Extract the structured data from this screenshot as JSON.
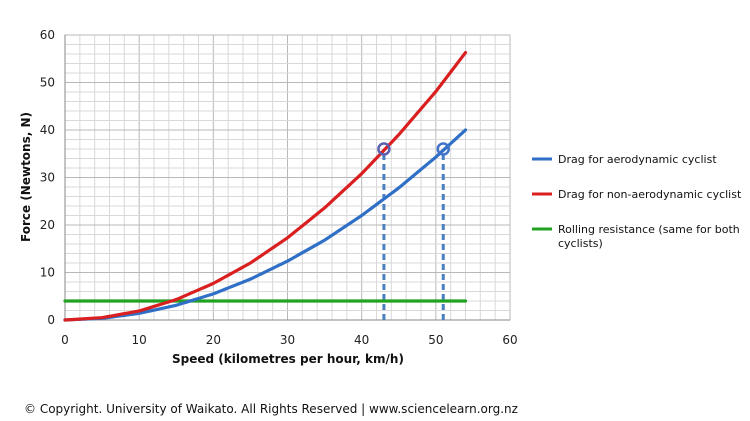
{
  "chart_data": {
    "type": "line",
    "xlabel": "Speed (kilometres per hour, km/h)",
    "ylabel": "Force (Newtons, N)",
    "xlim": [
      0,
      60
    ],
    "ylim": [
      0,
      60
    ],
    "x_ticks": [
      "0",
      "10",
      "20",
      "30",
      "40",
      "50",
      "60"
    ],
    "y_ticks": [
      "0",
      "10",
      "20",
      "30",
      "40",
      "50",
      "60"
    ],
    "grid": true,
    "legend_position": "right",
    "series": [
      {
        "name": "Drag for aerodynamic cyclist",
        "color": "#2f6fc6",
        "x": [
          0,
          5,
          10,
          15,
          20,
          25,
          30,
          35,
          40,
          45,
          50,
          54
        ],
        "y": [
          0,
          0.35,
          1.4,
          3.1,
          5.5,
          8.6,
          12.4,
          16.8,
          22.0,
          27.8,
          34.3,
          40.0
        ]
      },
      {
        "name": "Drag for non-aerodynamic cyclist",
        "color": "#d91f1f",
        "x": [
          0,
          5,
          10,
          15,
          20,
          25,
          30,
          35,
          40,
          45,
          50,
          54
        ],
        "y": [
          0,
          0.5,
          1.9,
          4.3,
          7.7,
          12.0,
          17.3,
          23.6,
          30.8,
          39.0,
          48.1,
          56.3
        ]
      },
      {
        "name": "Rolling resistance (same for both cyclists)",
        "color": "#21a321",
        "x": [
          0,
          54
        ],
        "y": [
          4,
          4
        ]
      }
    ],
    "markers": [
      {
        "series": "Drag for non-aerodynamic cyclist",
        "x": 43,
        "y": 36,
        "color": "#5a5fb0"
      },
      {
        "series": "Drag for aerodynamic cyclist",
        "x": 51,
        "y": 36,
        "color": "#3f72c8"
      }
    ],
    "reference_lines": [
      {
        "type": "vertical-dashed",
        "x": 43,
        "from_y": 0,
        "to_y": 36,
        "color": "#4a7fc0"
      },
      {
        "type": "vertical-dashed",
        "x": 51,
        "from_y": 0,
        "to_y": 36,
        "color": "#4a7fc0"
      }
    ],
    "legend_lines": [
      [
        "Drag for aerodynamic cyclist"
      ],
      [
        "Drag for non-aerodynamic cyclist"
      ],
      [
        "Rolling resistance (same for both",
        "cyclists)"
      ]
    ]
  },
  "footer": {
    "copyright": "© Copyright. University of Waikato. All Rights Reserved | www.sciencelearn.org.nz"
  }
}
